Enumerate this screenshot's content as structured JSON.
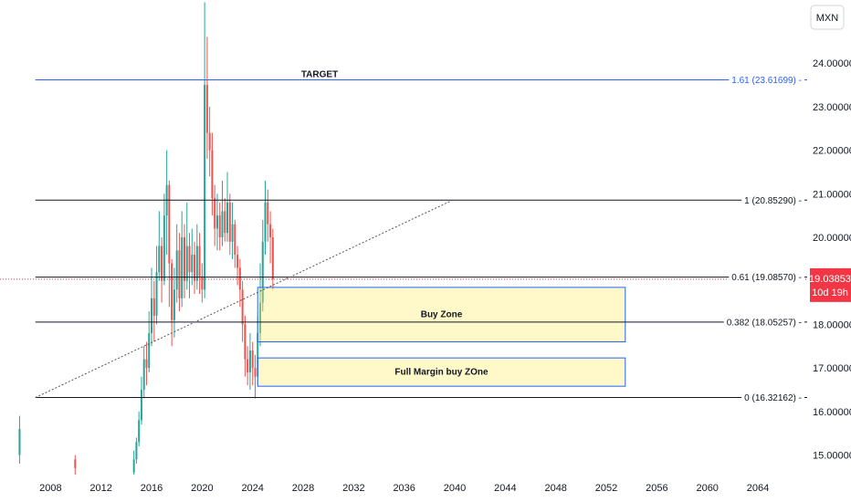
{
  "chart_data": {
    "type": "candlestick",
    "currency": "MXN",
    "x_ticks": [
      "2008",
      "2012",
      "2016",
      "2020",
      "2024",
      "2028",
      "2032",
      "2036",
      "2040",
      "2044",
      "2048",
      "2052",
      "2056",
      "2060",
      "2064"
    ],
    "y_ticks": [
      "15.00000",
      "16.00000",
      "17.00000",
      "18.00000",
      "19.00000",
      "20.00000",
      "21.00000",
      "22.00000",
      "23.00000",
      "24.00000"
    ],
    "y_range": [
      14.55,
      25.45
    ],
    "x_range": [
      2004.0,
      2067.9
    ],
    "fib_levels": [
      {
        "label": "1.61 (23.61699)",
        "value": 23.61699,
        "color": "#2962ff"
      },
      {
        "label": "1 (20.85290)",
        "value": 20.8529,
        "color": "#131722"
      },
      {
        "label": "0.61 (19.08570)",
        "value": 19.0857,
        "color": "#131722"
      },
      {
        "label": "0.382 (18.05257)",
        "value": 18.05257,
        "color": "#131722"
      },
      {
        "label": "0 (16.32162)",
        "value": 16.32162,
        "color": "#131722"
      }
    ],
    "fib_x_start": 2006.8,
    "target_label": "TARGET",
    "target_x": 2029.3,
    "trendline": {
      "x1": 2006.8,
      "y1": 16.32,
      "x2": 2039.8,
      "y2": 20.85
    },
    "zones": [
      {
        "label": "Buy Zone",
        "x1": 2024.4,
        "x2": 2053.5,
        "y_top": 18.85,
        "y_bottom": 17.6
      },
      {
        "label": "Full Margin buy ZOne",
        "x1": 2024.4,
        "x2": 2053.5,
        "y_top": 17.23,
        "y_bottom": 16.58
      }
    ],
    "current_price": {
      "value": 19.03853,
      "price_label": "19.03853",
      "countdown": "10d 19h",
      "color": "#f23645"
    },
    "candles": [
      [
        "2005.55",
        15.0,
        15.6,
        15.9,
        14.8
      ],
      [
        "2009.95",
        14.9,
        14.7,
        15.0,
        14.55
      ],
      [
        "2014.6",
        14.6,
        14.9,
        15.1,
        14.55
      ],
      [
        "2014.8",
        14.9,
        15.3,
        15.4,
        14.8
      ],
      [
        "2015.0",
        15.3,
        15.8,
        16.0,
        15.2
      ],
      [
        "2015.2",
        15.8,
        16.5,
        16.8,
        15.7
      ],
      [
        "2015.4",
        16.5,
        17.2,
        17.5,
        16.3
      ],
      [
        "2015.6",
        17.2,
        17.0,
        17.6,
        16.6
      ],
      [
        "2015.8",
        17.0,
        17.8,
        18.3,
        16.9
      ],
      [
        "2016.0",
        17.8,
        18.6,
        19.3,
        17.5
      ],
      [
        "2016.2",
        18.6,
        18.2,
        19.0,
        17.6
      ],
      [
        "2016.4",
        18.2,
        19.2,
        19.8,
        18.0
      ],
      [
        "2016.6",
        19.2,
        19.8,
        20.6,
        19.0
      ],
      [
        "2016.8",
        19.8,
        19.0,
        20.0,
        18.5
      ],
      [
        "2017.0",
        19.0,
        20.5,
        21.0,
        18.9
      ],
      [
        "2017.2",
        20.5,
        21.2,
        22.0,
        19.6
      ],
      [
        "2017.4",
        21.2,
        19.4,
        21.3,
        18.4
      ],
      [
        "2017.6",
        19.4,
        18.1,
        19.5,
        17.5
      ],
      [
        "2017.8",
        18.1,
        18.8,
        19.3,
        17.7
      ],
      [
        "2018.0",
        18.8,
        19.7,
        20.3,
        18.5
      ],
      [
        "2018.2",
        19.7,
        18.6,
        20.1,
        18.3
      ],
      [
        "2018.4",
        18.6,
        20.0,
        20.6,
        18.4
      ],
      [
        "2018.6",
        20.0,
        19.0,
        20.3,
        18.6
      ],
      [
        "2018.8",
        19.0,
        19.8,
        20.8,
        18.8
      ],
      [
        "2019.0",
        19.8,
        19.2,
        20.1,
        18.6
      ],
      [
        "2019.2",
        19.2,
        19.6,
        20.2,
        18.9
      ],
      [
        "2019.4",
        19.6,
        19.0,
        19.9,
        18.7
      ],
      [
        "2019.6",
        19.0,
        19.8,
        20.3,
        18.8
      ],
      [
        "2019.8",
        19.8,
        19.1,
        20.1,
        18.7
      ],
      [
        "2020.0",
        19.1,
        18.8,
        19.4,
        18.5
      ],
      [
        "2020.2",
        18.8,
        23.5,
        25.4,
        18.6
      ],
      [
        "2020.4",
        23.5,
        22.4,
        24.6,
        21.8
      ],
      [
        "2020.6",
        22.4,
        22.0,
        23.0,
        21.4
      ],
      [
        "2020.8",
        22.0,
        20.9,
        22.4,
        20.5
      ],
      [
        "2021.0",
        20.9,
        20.2,
        21.2,
        19.8
      ],
      [
        "2021.2",
        20.2,
        20.5,
        21.0,
        19.7
      ],
      [
        "2021.4",
        20.5,
        20.0,
        20.8,
        19.7
      ],
      [
        "2021.6",
        20.0,
        20.6,
        21.3,
        19.8
      ],
      [
        "2021.8",
        20.6,
        20.1,
        20.9,
        19.9
      ],
      [
        "2022.0",
        20.1,
        20.8,
        21.5,
        19.9
      ],
      [
        "2022.2",
        20.8,
        19.9,
        21.0,
        19.6
      ],
      [
        "2022.4",
        19.9,
        20.3,
        20.8,
        19.5
      ],
      [
        "2022.6",
        20.3,
        19.6,
        20.4,
        19.3
      ],
      [
        "2022.8",
        19.6,
        19.3,
        19.8,
        18.9
      ],
      [
        "2023.0",
        19.3,
        18.8,
        19.5,
        18.4
      ],
      [
        "2023.2",
        18.8,
        18.0,
        19.0,
        17.6
      ],
      [
        "2023.4",
        18.0,
        17.2,
        18.2,
        16.8
      ],
      [
        "2023.6",
        17.2,
        16.9,
        17.5,
        16.6
      ],
      [
        "2023.8",
        16.9,
        17.4,
        17.8,
        16.5
      ],
      [
        "2024.0",
        17.4,
        17.0,
        17.6,
        16.6
      ],
      [
        "2024.2",
        17.0,
        16.8,
        17.3,
        16.3
      ],
      [
        "2024.4",
        16.8,
        17.8,
        18.2,
        16.6
      ],
      [
        "2024.6",
        17.8,
        18.5,
        19.4,
        17.5
      ],
      [
        "2024.8",
        18.5,
        19.9,
        20.4,
        18.3
      ],
      [
        "2025.0",
        19.9,
        20.8,
        21.3,
        19.6
      ],
      [
        "2025.2",
        20.8,
        20.3,
        21.1,
        19.9
      ],
      [
        "2025.4",
        20.3,
        20.0,
        20.6,
        19.4
      ],
      [
        "2025.6",
        20.0,
        19.04,
        20.2,
        18.8
      ]
    ]
  }
}
